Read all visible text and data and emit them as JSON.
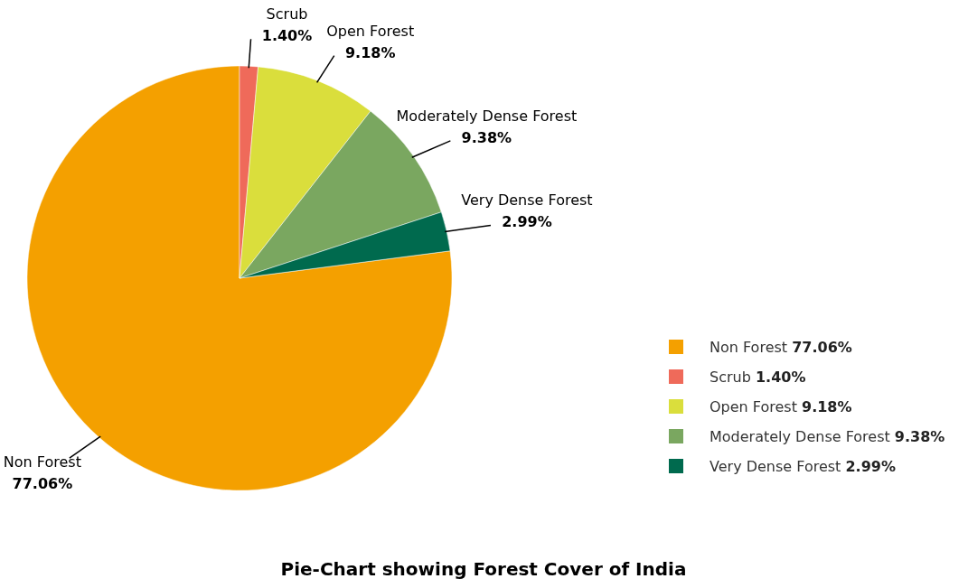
{
  "chart_data": {
    "type": "pie",
    "title": "Pie-Chart showing Forest Cover of India",
    "categories": [
      "Non Forest",
      "Scrub",
      "Open Forest",
      "Moderately Dense Forest",
      "Very Dense Forest"
    ],
    "values": [
      77.06,
      1.4,
      9.18,
      9.38,
      2.99
    ],
    "value_labels": [
      "77.06%",
      "1.40%",
      "9.18%",
      "9.38%",
      "2.99%"
    ],
    "colors": [
      "#f4a000",
      "#ef6a5a",
      "#dade3c",
      "#7aa760",
      "#006a4e"
    ],
    "legend": "right"
  }
}
